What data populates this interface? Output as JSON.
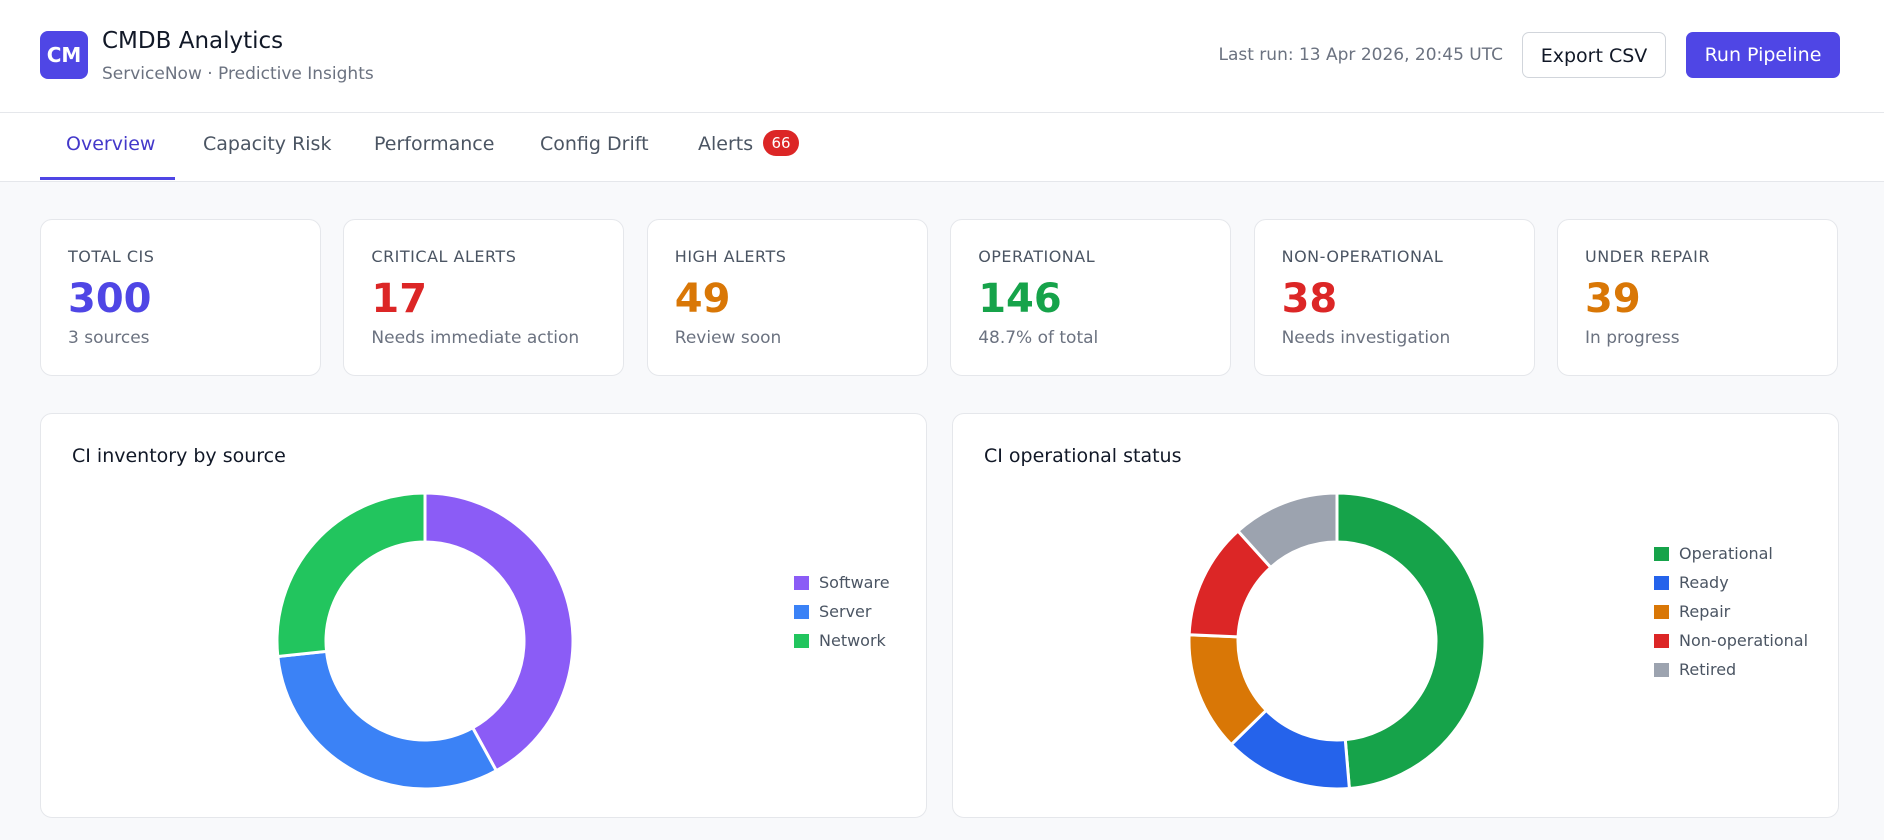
{
  "header": {
    "logo": "CM",
    "title": "CMDB Analytics",
    "subtitle": "ServiceNow · Predictive Insights",
    "last_run": "Last run: 13 Apr 2026, 20:45 UTC",
    "buttons": [
      "Export CSV",
      "Run Pipeline"
    ]
  },
  "tabs": [
    {
      "label": "Overview"
    },
    {
      "label": "Capacity Risk"
    },
    {
      "label": "Performance"
    },
    {
      "label": "Config Drift"
    },
    {
      "label": "Alerts",
      "badge": "66"
    }
  ],
  "kpis": [
    {
      "label": "TOTAL CIS",
      "value": "300",
      "note": "3 sources",
      "color": "#4f46e5"
    },
    {
      "label": "CRITICAL ALERTS",
      "value": "17",
      "note": "Needs immediate action",
      "color": "#dc2626"
    },
    {
      "label": "HIGH ALERTS",
      "value": "49",
      "note": "Review soon",
      "color": "#d97706"
    },
    {
      "label": "OPERATIONAL",
      "value": "146",
      "note": "48.7% of total",
      "color": "#16a34a"
    },
    {
      "label": "NON-OPERATIONAL",
      "value": "38",
      "note": "Needs investigation",
      "color": "#dc2626"
    },
    {
      "label": "UNDER REPAIR",
      "value": "39",
      "note": "In progress",
      "color": "#d97706"
    }
  ],
  "chart_data": [
    {
      "type": "donut",
      "title": "CI inventory by source",
      "categories": [
        "Software",
        "Server",
        "Network"
      ],
      "values": [
        126,
        94,
        80
      ],
      "colors": [
        "#8b5cf6",
        "#3b82f6",
        "#22c55e"
      ],
      "legend": "right"
    },
    {
      "type": "donut",
      "title": "CI operational status",
      "categories": [
        "Operational",
        "Ready",
        "Repair",
        "Non-operational",
        "Retired"
      ],
      "values": [
        146,
        42,
        39,
        38,
        35
      ],
      "colors": [
        "#16a34a",
        "#2563eb",
        "#d97706",
        "#dc2626",
        "#9ca3af"
      ],
      "legend": "right"
    }
  ]
}
